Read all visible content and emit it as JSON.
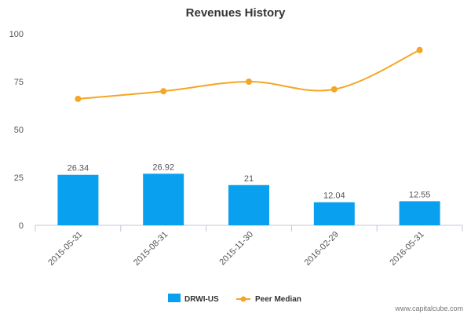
{
  "chart_data": {
    "type": "bar",
    "title": "Revenues History",
    "categories": [
      "2015-05-31",
      "2015-08-31",
      "2015-11-30",
      "2016-02-29",
      "2016-05-31"
    ],
    "series": [
      {
        "name": "DRWI-US",
        "kind": "bar",
        "color": "#0aa0f0",
        "values": [
          26.34,
          26.92,
          21,
          12.04,
          12.55
        ],
        "data_labels": [
          "26.34",
          "26.92",
          "21",
          "12.04",
          "12.55"
        ]
      },
      {
        "name": "Peer Median",
        "kind": "line",
        "color": "#f5a623",
        "values": [
          66,
          70,
          75,
          71,
          91.5
        ]
      }
    ],
    "ylim": [
      0,
      100
    ],
    "yticks": [
      "0",
      "25",
      "50",
      "75",
      "100"
    ],
    "xlabel": "",
    "ylabel": "",
    "grid": false,
    "legend": "bottom-center"
  },
  "watermark": "www.capitalcube.com"
}
